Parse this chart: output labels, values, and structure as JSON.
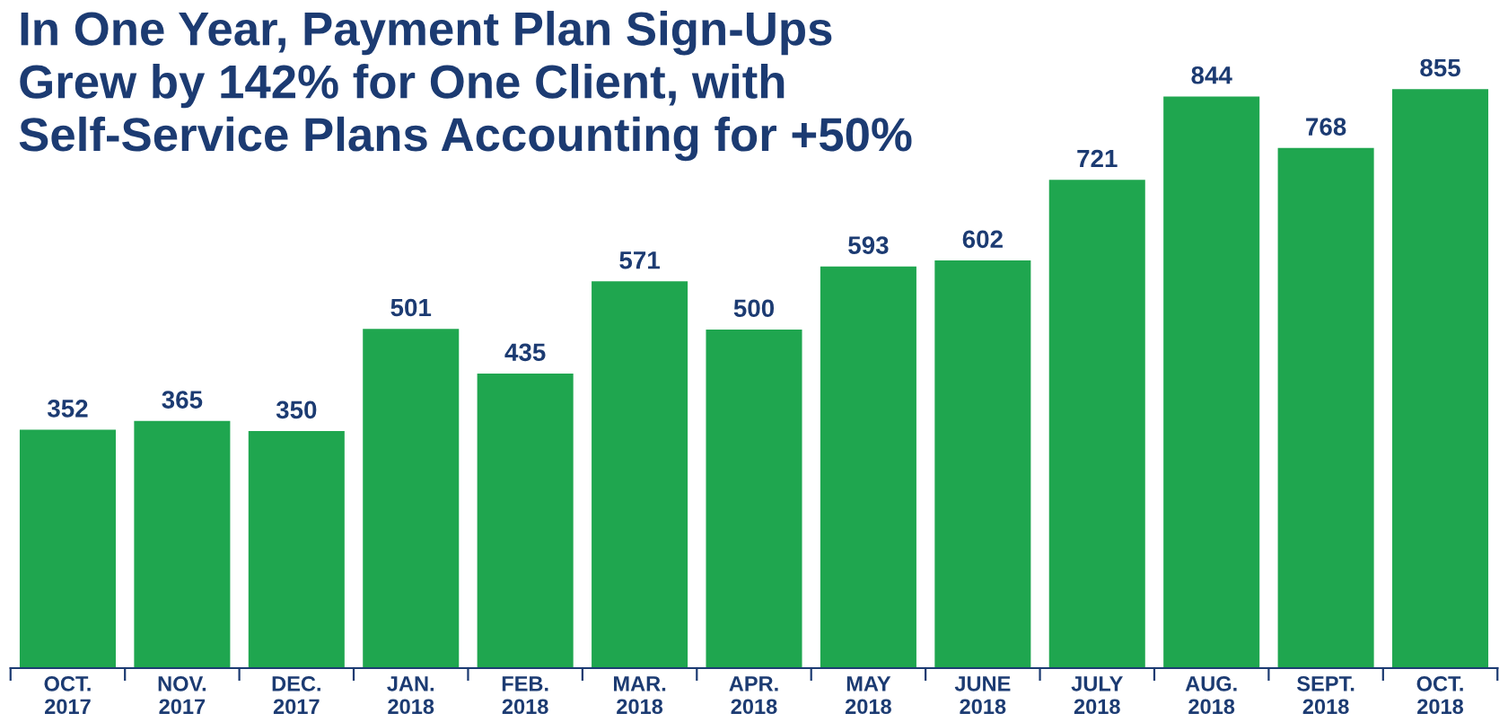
{
  "chart_data": {
    "type": "bar",
    "title": "In One Year, Payment Plan Sign-Ups\nGrew by 142% for One Client, with\nSelf-Service Plans Accounting for +50%",
    "categories": [
      "OCT.\n2017",
      "NOV.\n2017",
      "DEC.\n2017",
      "JAN.\n2018",
      "FEB.\n2018",
      "MAR.\n2018",
      "APR.\n2018",
      "MAY\n2018",
      "JUNE\n2018",
      "JULY\n2018",
      "AUG.\n2018",
      "SEPT.\n2018",
      "OCT.\n2018"
    ],
    "values": [
      352,
      365,
      350,
      501,
      435,
      571,
      500,
      593,
      602,
      721,
      844,
      768,
      855
    ],
    "color": "#1fa64f",
    "data_labels": true,
    "grid": false,
    "legend": false
  }
}
